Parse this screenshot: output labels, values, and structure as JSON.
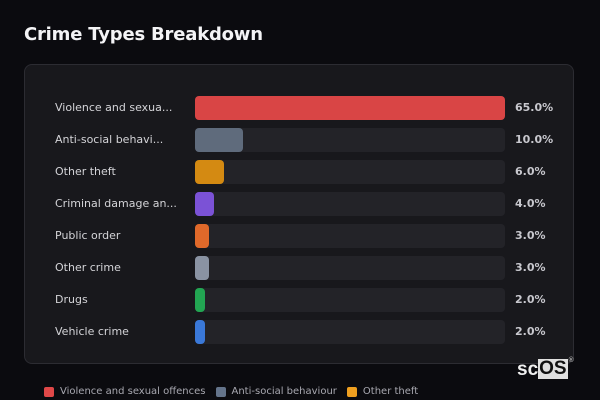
{
  "header": {
    "title": "Crime Types Breakdown"
  },
  "chart_data": {
    "type": "bar",
    "orientation": "horizontal",
    "title": "Crime Types Breakdown",
    "xlabel": "",
    "ylabel": "",
    "xlim": [
      0,
      65
    ],
    "grid": false,
    "legend_position": "bottom",
    "categories": [
      "Violence and sexual offences",
      "Anti-social behaviour",
      "Other theft",
      "Criminal damage and arson",
      "Public order",
      "Other crime",
      "Drugs",
      "Vehicle crime"
    ],
    "display_labels": [
      "Violence and sexua...",
      "Anti-social behavi...",
      "Other theft",
      "Criminal damage an...",
      "Public order",
      "Other crime",
      "Drugs",
      "Vehicle crime"
    ],
    "values": [
      65.0,
      10.0,
      6.0,
      4.0,
      3.0,
      3.0,
      2.0,
      2.0
    ],
    "value_labels": [
      "65.0%",
      "10.0%",
      "6.0%",
      "4.0%",
      "3.0%",
      "3.0%",
      "2.0%",
      "2.0%"
    ],
    "colors": [
      "#d94545",
      "#5f6b7c",
      "#d48a12",
      "#7b52d6",
      "#e0692a",
      "#8a93a3",
      "#22a552",
      "#3a78d8"
    ]
  },
  "legend": [
    {
      "label": "Violence and sexual offences",
      "color": "#e04848"
    },
    {
      "label": "Anti-social behaviour",
      "color": "#64748b"
    },
    {
      "label": "Other theft",
      "color": "#f0a020"
    }
  ],
  "watermark": {
    "left": "sc",
    "right": "OS",
    "mark": "®"
  }
}
